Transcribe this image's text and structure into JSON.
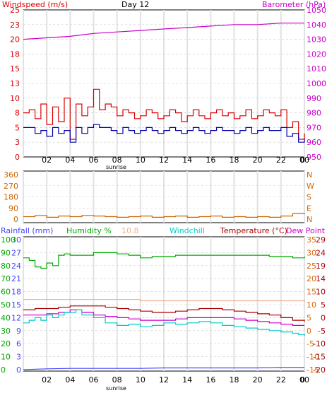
{
  "chart_data": [
    {
      "type": "line",
      "title": "Day 12",
      "left_axis_label": "Windspeed (m/s)",
      "right_axis_label": "Barometer (hPa)",
      "left_ticks": [
        "25",
        "23",
        "20",
        "18",
        "15",
        "13",
        "10",
        "8",
        "5",
        "3",
        "0"
      ],
      "right_ticks": [
        "1050",
        "1040",
        "1030",
        "1020",
        "1010",
        "1000",
        "990",
        "980",
        "970",
        "960",
        "950"
      ],
      "left_ylim": [
        0,
        25
      ],
      "right_ylim": [
        950,
        1050
      ],
      "x_ticks": [
        "02",
        "04",
        "06",
        "08",
        "10",
        "12",
        "14",
        "16",
        "18",
        "20",
        "22",
        "00",
        "0"
      ],
      "x_annotation": "sunrise",
      "grid": true,
      "series": [
        {
          "name": "Barometer (hPa)",
          "color": "#cc00cc",
          "axis": "right",
          "x": [
            0,
            2,
            4,
            6,
            8,
            10,
            12,
            14,
            16,
            18,
            20,
            22,
            24
          ],
          "values": [
            1030,
            1031,
            1032,
            1034,
            1035,
            1036,
            1037,
            1038,
            1039,
            1040,
            1040,
            1041,
            1041
          ]
        },
        {
          "name": "Windspeed (m/s)",
          "color": "#dd0000",
          "axis": "left",
          "x": [
            0,
            0.5,
            1,
            1.5,
            2,
            2.5,
            3,
            3.5,
            4,
            4.5,
            5,
            5.5,
            6,
            6.5,
            7,
            7.5,
            8,
            8.5,
            9,
            9.5,
            10,
            10.5,
            11,
            11.5,
            12,
            12.5,
            13,
            13.5,
            14,
            14.5,
            15,
            15.5,
            16,
            16.5,
            17,
            17.5,
            18,
            18.5,
            19,
            19.5,
            20,
            20.5,
            21,
            21.5,
            22,
            22.5,
            23,
            23.5,
            24
          ],
          "values": [
            7.5,
            8,
            6.5,
            9,
            5.5,
            8.5,
            6,
            10,
            3,
            9,
            7,
            8.5,
            11.5,
            8,
            9,
            8.5,
            7,
            8,
            7.5,
            6.5,
            7,
            8,
            7.5,
            6.5,
            7,
            8,
            7.5,
            6,
            7,
            8,
            7,
            6.5,
            7.5,
            8,
            7,
            7.5,
            6.5,
            7,
            8,
            6.5,
            7,
            8,
            7.5,
            7,
            8,
            5,
            6,
            3,
            4
          ]
        },
        {
          "name": "Gust",
          "color": "#0000aa",
          "axis": "left",
          "x": [
            0,
            0.5,
            1,
            1.5,
            2,
            2.5,
            3,
            3.5,
            4,
            4.5,
            5,
            5.5,
            6,
            6.5,
            7,
            7.5,
            8,
            8.5,
            9,
            9.5,
            10,
            10.5,
            11,
            11.5,
            12,
            12.5,
            13,
            13.5,
            14,
            14.5,
            15,
            15.5,
            16,
            16.5,
            17,
            17.5,
            18,
            18.5,
            19,
            19.5,
            20,
            20.5,
            21,
            21.5,
            22,
            22.5,
            23,
            23.5,
            24
          ],
          "values": [
            5,
            5,
            4,
            4.5,
            3.5,
            5,
            4,
            4.5,
            2.5,
            5,
            4,
            5,
            5.5,
            5,
            5,
            4.5,
            4,
            5,
            4.5,
            4,
            4.5,
            5,
            4.5,
            4,
            4.5,
            5,
            4.5,
            4,
            4.5,
            5,
            4.5,
            4,
            4.5,
            5,
            4.5,
            4.5,
            4,
            4.5,
            5,
            4,
            4.5,
            5,
            4.5,
            4.5,
            5,
            3.5,
            4,
            2.5,
            3
          ]
        }
      ]
    },
    {
      "type": "line",
      "left_ticks": [
        "360",
        "270",
        "180",
        "90",
        "0"
      ],
      "right_ticks": [
        "N",
        "W",
        "S",
        "E",
        "N"
      ],
      "left_ylim": [
        0,
        360
      ],
      "grid": true,
      "series": [
        {
          "name": "Wind direction",
          "color": "#cc6600",
          "x": [
            0,
            1,
            2,
            3,
            4,
            5,
            6,
            7,
            8,
            9,
            10,
            11,
            12,
            13,
            14,
            15,
            16,
            17,
            18,
            19,
            20,
            21,
            22,
            23,
            24
          ],
          "values": [
            20,
            30,
            15,
            25,
            20,
            30,
            25,
            20,
            15,
            20,
            25,
            15,
            20,
            25,
            15,
            20,
            25,
            15,
            20,
            15,
            20,
            15,
            25,
            45,
            40
          ]
        }
      ]
    },
    {
      "type": "line",
      "header_labels": {
        "rainfall": "Rainfall (mm)",
        "humidity": "Humidity %",
        "heat": "10.8",
        "windchill": "Windchill",
        "temperature": "Temperature (°C)",
        "dewpoint": "Dew Point"
      },
      "rainfall_ticks": [
        "30",
        "27",
        "24",
        "21",
        "18",
        "15",
        "12",
        "9",
        "6",
        "3",
        "0"
      ],
      "humidity_ticks": [
        "100",
        "90",
        "80",
        "70",
        "60",
        "50",
        "40",
        "30",
        "20",
        "10",
        "0"
      ],
      "temperature_ticks": [
        "35",
        "30",
        "25",
        "20",
        "15",
        "10",
        "5",
        "0",
        "-5",
        "-10",
        "-15"
      ],
      "dewpoint_ticks": [
        "29",
        "24",
        "19",
        "14",
        "10",
        "5",
        "0",
        "-5",
        "-10",
        "-15",
        "-20"
      ],
      "x_ticks": [
        "02",
        "04",
        "06",
        "08",
        "10",
        "12",
        "14",
        "16",
        "18",
        "20",
        "22",
        "00",
        "0"
      ],
      "x_annotation": "sunrise",
      "grid": true,
      "series": [
        {
          "name": "Humidity %",
          "color": "#00aa00",
          "axis": "humidity",
          "x": [
            0,
            0.5,
            1,
            1.5,
            2,
            2.5,
            3,
            3.5,
            4,
            5,
            6,
            7,
            8,
            9,
            10,
            11,
            12,
            13,
            14,
            15,
            16,
            17,
            18,
            19,
            20,
            21,
            22,
            23,
            24
          ],
          "values": [
            86,
            84,
            79,
            78,
            82,
            80,
            88,
            89,
            88,
            88,
            90,
            90,
            89,
            88,
            86,
            87,
            87,
            88,
            88,
            88,
            88,
            88,
            88,
            88,
            88,
            87,
            87,
            86,
            87
          ]
        },
        {
          "name": "10.8",
          "color": "#f0b090",
          "axis": "temperature",
          "x": [
            0,
            2,
            4,
            6,
            8,
            10,
            12,
            14,
            16,
            18,
            20,
            22,
            24
          ],
          "values": [
            12,
            12,
            12,
            12,
            12,
            11.5,
            11.5,
            11.5,
            11.5,
            11.5,
            11.5,
            11.5,
            11
          ]
        },
        {
          "name": "Temperature (°C)",
          "color": "#aa0000",
          "axis": "temperature",
          "x": [
            0,
            1,
            2,
            3,
            4,
            5,
            6,
            7,
            8,
            9,
            10,
            11,
            12,
            13,
            14,
            15,
            16,
            17,
            18,
            19,
            20,
            21,
            22,
            23,
            24
          ],
          "values": [
            8,
            8.5,
            8.5,
            9,
            9.5,
            9.5,
            9.5,
            9,
            8.5,
            8,
            7.5,
            7,
            7,
            7.5,
            8,
            8.5,
            8.5,
            8,
            7.5,
            7,
            6.5,
            6,
            5,
            4,
            3.5
          ]
        },
        {
          "name": "Dew Point",
          "color": "#cc00cc",
          "axis": "temperature",
          "x": [
            0,
            1,
            2,
            3,
            4,
            5,
            6,
            7,
            8,
            9,
            10,
            11,
            12,
            13,
            14,
            15,
            16,
            17,
            18,
            19,
            20,
            21,
            22,
            23,
            24
          ],
          "values": [
            6,
            6,
            6.5,
            7,
            8,
            7,
            6,
            5.5,
            5,
            4.5,
            4,
            4,
            4,
            4.5,
            5,
            5,
            5,
            5,
            4.5,
            4,
            3.5,
            3,
            2.5,
            2,
            2
          ]
        },
        {
          "name": "Windchill",
          "color": "#00cccc",
          "axis": "temperature",
          "x": [
            0,
            0.5,
            1,
            1.5,
            2,
            2.5,
            3,
            3.5,
            4,
            4.5,
            5,
            6,
            7,
            8,
            9,
            10,
            11,
            12,
            13,
            14,
            15,
            16,
            17,
            18,
            19,
            20,
            21,
            22,
            23,
            23.5,
            24
          ],
          "values": [
            3,
            4,
            5,
            4,
            6,
            5,
            6,
            7,
            7,
            8,
            6,
            5,
            3,
            2,
            2.5,
            1.5,
            2,
            3,
            2.5,
            3,
            3.5,
            3,
            2,
            1.5,
            1,
            0.5,
            0,
            -0.5,
            -1,
            -1.5,
            -2
          ]
        },
        {
          "name": "Rainfall (mm)",
          "color": "#4444ff",
          "axis": "rainfall",
          "x": [
            0,
            2,
            4,
            6,
            8,
            10,
            12,
            14,
            16,
            18,
            20,
            22,
            23,
            24
          ],
          "values": [
            0,
            0.2,
            0.3,
            0.3,
            0.3,
            0.3,
            0.4,
            0.4,
            0.4,
            0.4,
            0.4,
            0.5,
            0.5,
            0.5
          ]
        }
      ]
    }
  ]
}
